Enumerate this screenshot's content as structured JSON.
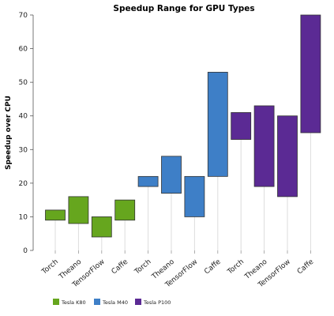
{
  "chart_data": {
    "type": "bar",
    "title": "Speedup Range for GPU Types",
    "xlabel": "",
    "ylabel": "Speedup over CPU",
    "ylim": [
      0,
      70
    ],
    "yticks": [
      0,
      10,
      20,
      30,
      40,
      50,
      60,
      70
    ],
    "grid": false,
    "legend_position": "bottom-left",
    "categories": [
      "Torch",
      "Theano",
      "TensorFlow",
      "Caffe",
      "Torch",
      "Theano",
      "TensorFlow",
      "Caffe",
      "Torch",
      "Theano",
      "TensorFlow",
      "Caffe"
    ],
    "series": [
      {
        "name": "Tesla K80",
        "color": "#66a61e",
        "ranges": [
          {
            "category": "Torch",
            "low": 9,
            "high": 12
          },
          {
            "category": "Theano",
            "low": 8,
            "high": 16
          },
          {
            "category": "TensorFlow",
            "low": 4,
            "high": 10
          },
          {
            "category": "Caffe",
            "low": 9,
            "high": 15
          }
        ]
      },
      {
        "name": "Tesla M40",
        "color": "#3e7fc7",
        "ranges": [
          {
            "category": "Torch",
            "low": 19,
            "high": 22
          },
          {
            "category": "Theano",
            "low": 17,
            "high": 28
          },
          {
            "category": "TensorFlow",
            "low": 10,
            "high": 22
          },
          {
            "category": "Caffe",
            "low": 22,
            "high": 53
          }
        ]
      },
      {
        "name": "Tesla P100",
        "color": "#5b2a94",
        "ranges": [
          {
            "category": "Torch",
            "low": 33,
            "high": 41
          },
          {
            "category": "Theano",
            "low": 19,
            "high": 43
          },
          {
            "category": "TensorFlow",
            "low": 16,
            "high": 40
          },
          {
            "category": "Caffe",
            "low": 35,
            "high": 70
          }
        ]
      }
    ]
  }
}
